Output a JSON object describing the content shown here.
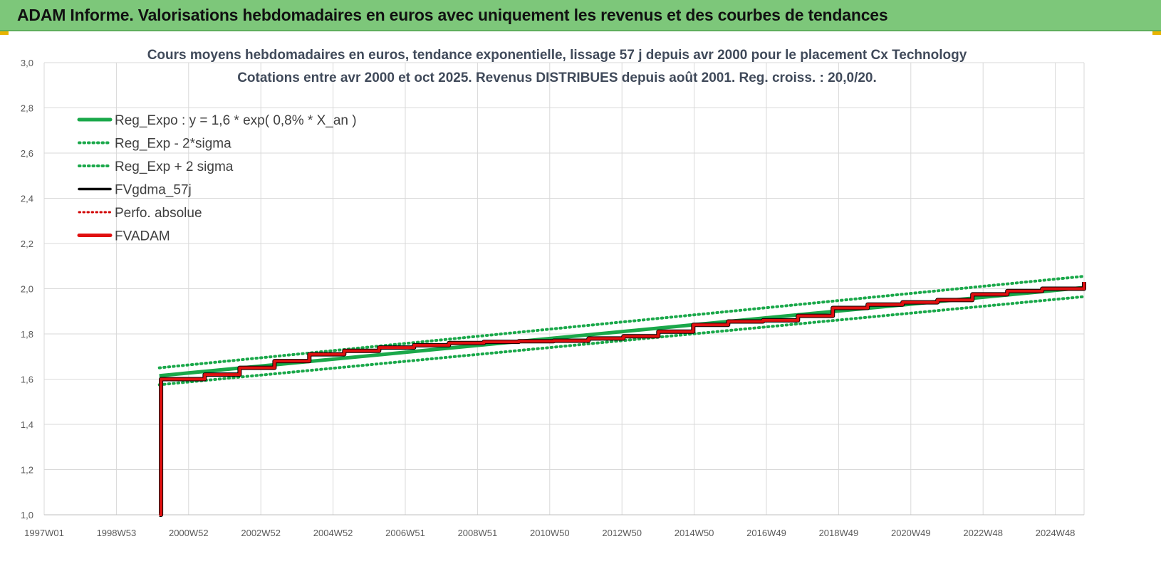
{
  "banner": {
    "title": "ADAM Informe. Valorisations hebdomadaires en euros avec uniquement les revenus et des courbes de tendances"
  },
  "colors": {
    "banner": "#7dc77a",
    "reg_expo": "#1aa84a",
    "sigma": "#1aa84a",
    "fvgdma": "#000000",
    "perfo": "#d10000",
    "fvadam": "#e01010",
    "grid": "#d9d9d9",
    "title_text": "#404a5a"
  },
  "chart_data": {
    "type": "line",
    "title": "Cours moyens hebdomadaires en euros, tendance exponentielle, lissage 57 j depuis avr 2000 pour le placement Cx Technology",
    "subtitle": "Cotations entre avr 2000 et oct 2025. Revenus DISTRIBUES depuis août 2001. Reg. croiss. : 20,0/20.",
    "xlabel": "",
    "ylabel": "",
    "x_ticks": [
      "1997W01",
      "1998W53",
      "2000W52",
      "2002W52",
      "2004W52",
      "2006W51",
      "2008W51",
      "2010W50",
      "2012W50",
      "2014W50",
      "2016W49",
      "2018W49",
      "2020W49",
      "2022W48",
      "2024W48"
    ],
    "x_range": [
      1997.0,
      2026.8
    ],
    "y_ticks": [
      "1,0",
      "1,2",
      "1,4",
      "1,6",
      "1,8",
      "2,0",
      "2,2",
      "2,4",
      "2,6",
      "2,8",
      "3,0"
    ],
    "ylim": [
      1.0,
      3.0
    ],
    "grid": true,
    "legend_position": "top-left",
    "legend": [
      {
        "key": "reg",
        "label": "Reg_Expo : y = 1,6 * exp( 0,8% *  X_an )",
        "style": "solid-thick-green"
      },
      {
        "key": "low",
        "label": "Reg_Exp - 2*sigma",
        "style": "dotted-green"
      },
      {
        "key": "high",
        "label": "Reg_Exp + 2 sigma",
        "style": "dotted-green"
      },
      {
        "key": "fvgdma",
        "label": "FVgdma_57j",
        "style": "solid-black"
      },
      {
        "key": "perfo",
        "label": "Perfo. absolue",
        "style": "dotted-red"
      },
      {
        "key": "fvadam",
        "label": "FVADAM",
        "style": "solid-thick-red"
      }
    ],
    "series": [
      {
        "key": "reg",
        "name": "Reg_Expo : y = 1,6 * exp( 0,8% *  X_an )",
        "x": [
          2000.3,
          2026.8
        ],
        "y": [
          1.615,
          2.005
        ]
      },
      {
        "key": "low",
        "name": "Reg_Exp - 2*sigma",
        "x": [
          2000.3,
          2026.8
        ],
        "y": [
          1.575,
          1.965
        ]
      },
      {
        "key": "high",
        "name": "Reg_Exp + 2 sigma",
        "x": [
          2000.3,
          2026.8
        ],
        "y": [
          1.65,
          2.055
        ]
      },
      {
        "key": "fvadam",
        "name": "FVADAM",
        "x": [
          2000.3,
          2000.35,
          2001.6,
          2002.6,
          2003.6,
          2004.6,
          2005.6,
          2006.6,
          2007.6,
          2008.6,
          2009.6,
          2010.6,
          2011.6,
          2012.6,
          2013.6,
          2014.6,
          2015.6,
          2016.6,
          2017.6,
          2018.6,
          2019.6,
          2020.6,
          2021.6,
          2022.6,
          2023.6,
          2024.6,
          2025.6,
          2026.8
        ],
        "y": [
          1.0,
          1.6,
          1.62,
          1.65,
          1.68,
          1.71,
          1.725,
          1.74,
          1.75,
          1.76,
          1.765,
          1.768,
          1.77,
          1.78,
          1.79,
          1.81,
          1.84,
          1.855,
          1.86,
          1.88,
          1.915,
          1.93,
          1.94,
          1.95,
          1.975,
          1.99,
          2.0,
          2.03
        ]
      }
    ]
  }
}
